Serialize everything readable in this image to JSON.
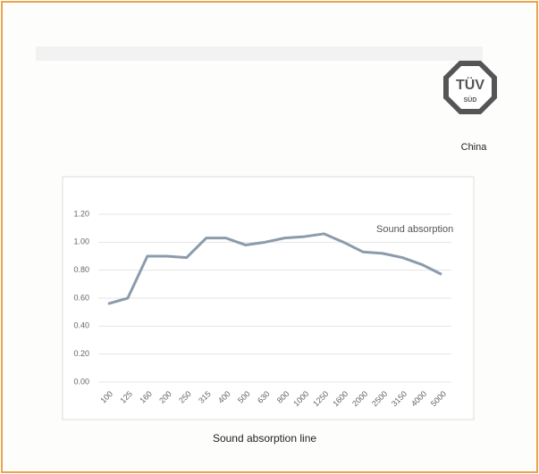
{
  "chart_data": {
    "type": "line",
    "xlabel": "Sound absorption line",
    "categories": [
      "100",
      "125",
      "160",
      "200",
      "250",
      "315",
      "400",
      "500",
      "630",
      "800",
      "1000",
      "1250",
      "1600",
      "2000",
      "2500",
      "3150",
      "4000",
      "5000"
    ],
    "series": [
      {
        "name": "Sound absorption",
        "color": "#8c9bac",
        "values": [
          0.56,
          0.6,
          0.9,
          0.9,
          0.89,
          1.03,
          1.03,
          0.98,
          1.0,
          1.03,
          1.04,
          1.06,
          1.0,
          0.93,
          0.92,
          0.89,
          0.84,
          0.77
        ]
      }
    ],
    "ylim": [
      0,
      1.2
    ],
    "yticks": [
      {
        "value": 0,
        "label": "0.00"
      },
      {
        "value": 0.2,
        "label": "0.20"
      },
      {
        "value": 0.4,
        "label": "0.40"
      },
      {
        "value": 0.6,
        "label": "0.60"
      },
      {
        "value": 0.8,
        "label": "0.80"
      },
      {
        "value": 1.0,
        "label": "1.00"
      },
      {
        "value": 1.2,
        "label": "1.20"
      }
    ],
    "grid": true
  },
  "logo": {
    "mark": "TÜV",
    "sub": "SÜD",
    "caption": "China"
  }
}
